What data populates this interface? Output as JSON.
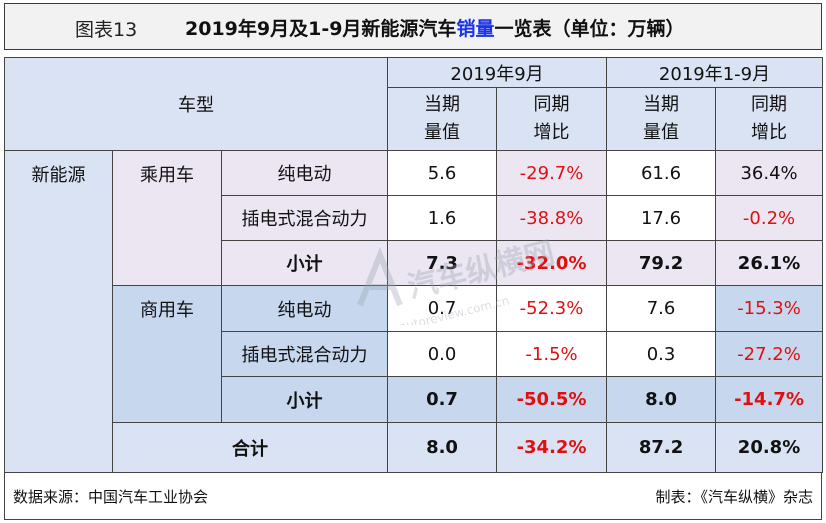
{
  "title": {
    "label": "图表13",
    "text_pre": "2019年9月及1-9月新能源汽车",
    "text_highlight": "销量",
    "text_post": "一览表（单位：万辆）"
  },
  "headers": {
    "model": "车型",
    "period1": "2019年9月",
    "period2": "2019年1-9月",
    "current_line1": "当期",
    "current_line2": "量值",
    "yoy_line1": "同期",
    "yoy_line2": "增比"
  },
  "groups": {
    "nev": "新能源",
    "passenger": "乘用车",
    "commercial": "商用车",
    "bev": "纯电动",
    "phev": "插电式混合动力",
    "subtotal": "小计",
    "total": "合计"
  },
  "rows": {
    "pv_bev": {
      "sep": "5.6",
      "sep_yoy": "-29.7%",
      "ytd": "61.6",
      "ytd_yoy": "36.4%"
    },
    "pv_phev": {
      "sep": "1.6",
      "sep_yoy": "-38.8%",
      "ytd": "17.6",
      "ytd_yoy": "-0.2%"
    },
    "pv_sub": {
      "sep": "7.3",
      "sep_yoy": "-32.0%",
      "ytd": "79.2",
      "ytd_yoy": "26.1%"
    },
    "cv_bev": {
      "sep": "0.7",
      "sep_yoy": "-52.3%",
      "ytd": "7.6",
      "ytd_yoy": "-15.3%"
    },
    "cv_phev": {
      "sep": "0.0",
      "sep_yoy": "-1.5%",
      "ytd": "0.3",
      "ytd_yoy": "-27.2%"
    },
    "cv_sub": {
      "sep": "0.7",
      "sep_yoy": "-50.5%",
      "ytd": "8.0",
      "ytd_yoy": "-14.7%"
    },
    "total": {
      "sep": "8.0",
      "sep_yoy": "-34.2%",
      "ytd": "87.2",
      "ytd_yoy": "20.8%"
    }
  },
  "footer": {
    "source": "数据来源：中国汽车工业协会",
    "maker": "制表：《汽车纵横》杂志"
  },
  "watermark": {
    "text": "汽车纵横网",
    "url": "autoreview.com.cn"
  },
  "colors": {
    "negative": "#e01010",
    "highlight": "#1a33e6"
  }
}
